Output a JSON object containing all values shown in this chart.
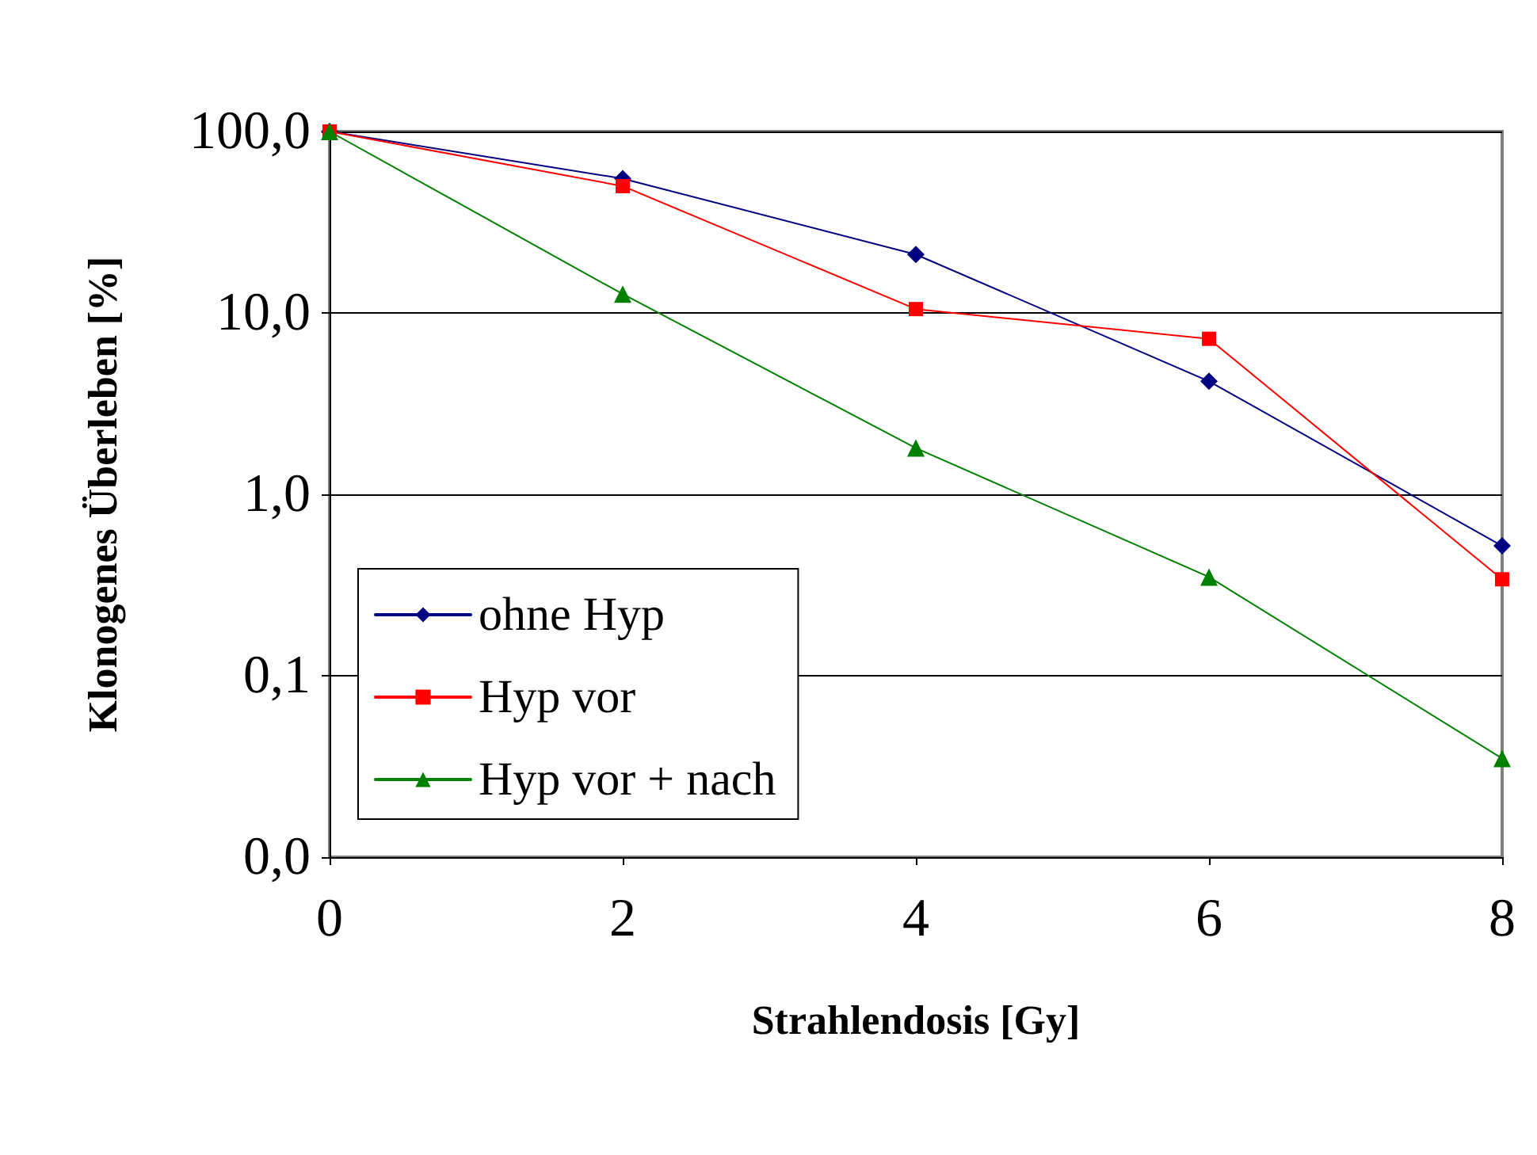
{
  "chart_data": {
    "type": "line",
    "xlabel": "Strahlendosis [Gy]",
    "ylabel": "Klonogenes Überleben [%]",
    "x": [
      0,
      2,
      4,
      6,
      8
    ],
    "series": [
      {
        "name": "ohne Hyp",
        "color": "#000080",
        "marker": "diamond",
        "values": [
          100,
          55,
          21,
          4.2,
          0.52
        ]
      },
      {
        "name": "Hyp vor",
        "color": "#ff0000",
        "marker": "square",
        "values": [
          100,
          50,
          10.5,
          7.2,
          0.34
        ]
      },
      {
        "name": "Hyp vor + nach",
        "color": "#008000",
        "marker": "triangle",
        "values": [
          100,
          12.7,
          1.8,
          0.35,
          0.035
        ]
      }
    ],
    "log": "y",
    "xlim": [
      0,
      8
    ],
    "xticks": [
      0,
      2,
      4,
      6,
      8
    ],
    "ylim": [
      0.01,
      100
    ],
    "yticks": [
      {
        "value": 0.01,
        "label": "0,0"
      },
      {
        "value": 0.1,
        "label": "0,1"
      },
      {
        "value": 1,
        "label": "1,0"
      },
      {
        "value": 10,
        "label": "10,0"
      },
      {
        "value": 100,
        "label": "100,0"
      }
    ],
    "grid": "y",
    "legend": "bottom left",
    "line_style": "solid"
  }
}
